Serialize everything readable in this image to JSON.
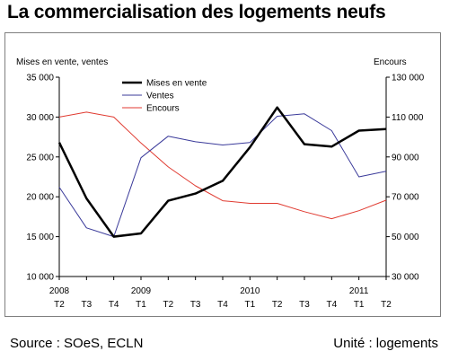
{
  "page": {
    "title": "La commercialisation des logements neufs",
    "source": "Source : SOeS, ECLN",
    "unit": "Unité : logements"
  },
  "chart_data": {
    "type": "line",
    "left_axis_label": "Mises en vente, ventes",
    "right_axis_label": "Encours",
    "quarters": [
      "T2",
      "T3",
      "T4",
      "T1",
      "T2",
      "T3",
      "T4",
      "T1",
      "T2",
      "T3",
      "T4",
      "T1",
      "T2"
    ],
    "years": [
      {
        "label": "2008",
        "index": 0
      },
      {
        "label": "2009",
        "index": 3
      },
      {
        "label": "2010",
        "index": 7
      },
      {
        "label": "2011",
        "index": 11
      }
    ],
    "y_left": {
      "min": 10000,
      "max": 35000,
      "step": 5000,
      "ticks": [
        "10 000",
        "15 000",
        "20 000",
        "25 000",
        "30 000",
        "35 000"
      ]
    },
    "y_right": {
      "min": 30000,
      "max": 130000,
      "step": 20000,
      "ticks": [
        "30 000",
        "50 000",
        "70 000",
        "90 000",
        "110 000",
        "130 000"
      ]
    },
    "series": [
      {
        "name": "Mises en vente",
        "axis": "left",
        "color": "#000000",
        "width": 2.5,
        "values": [
          26800,
          19800,
          15000,
          15400,
          19500,
          20400,
          22000,
          26200,
          31200,
          26600,
          26300,
          28300,
          28500
        ]
      },
      {
        "name": "Ventes",
        "axis": "left",
        "color": "#3a3a9a",
        "width": 1,
        "values": [
          21200,
          16100,
          15000,
          24900,
          27600,
          26900,
          26500,
          26800,
          30100,
          30400,
          28300,
          22500,
          23200
        ]
      },
      {
        "name": "Encours",
        "axis": "right",
        "color": "#e03a30",
        "width": 1,
        "values": [
          110000,
          112500,
          110000,
          97000,
          85000,
          75500,
          68000,
          66700,
          66700,
          62500,
          59000,
          63000,
          68300
        ]
      }
    ],
    "legend_position": "top-left"
  }
}
